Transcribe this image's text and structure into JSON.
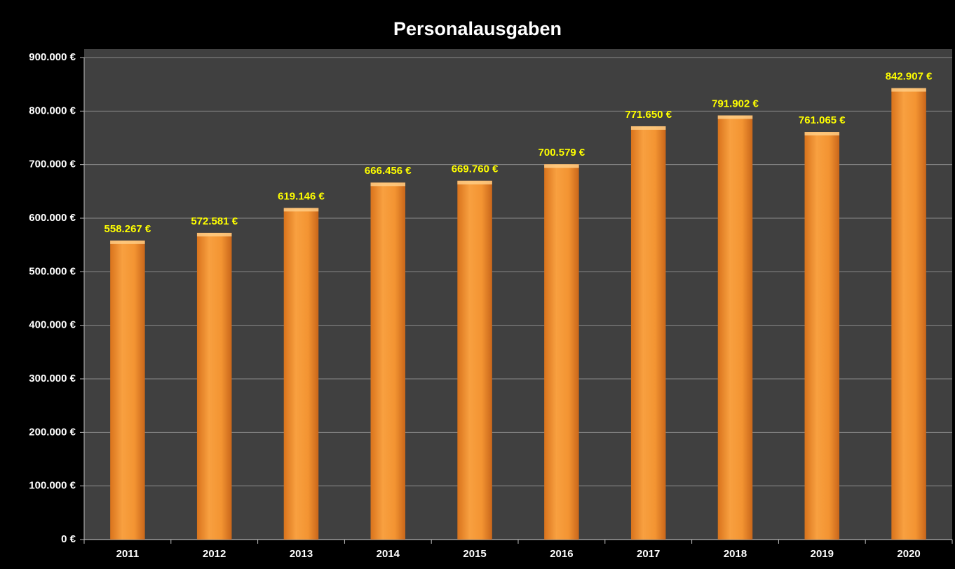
{
  "chart_data": {
    "type": "bar",
    "title": "Personalausgaben",
    "categories": [
      "2011",
      "2012",
      "2013",
      "2014",
      "2015",
      "2016",
      "2017",
      "2018",
      "2019",
      "2020"
    ],
    "values": [
      558267,
      572581,
      619146,
      666456,
      669760,
      700579,
      771650,
      791902,
      761065,
      842907
    ],
    "value_labels": [
      "558.267 €",
      "572.581 €",
      "619.146 €",
      "666.456 €",
      "669.760 €",
      "700.579 €",
      "771.650 €",
      "791.902 €",
      "761.065 €",
      "842.907 €"
    ],
    "color": "#f39432",
    "ylim": [
      0,
      900000
    ],
    "yticks": [
      {
        "value": 0,
        "label": "0 €"
      },
      {
        "value": 100000,
        "label": "100.000 €"
      },
      {
        "value": 200000,
        "label": "200.000 €"
      },
      {
        "value": 300000,
        "label": "300.000 €"
      },
      {
        "value": 400000,
        "label": "400.000 €"
      },
      {
        "value": 500000,
        "label": "500.000 €"
      },
      {
        "value": 600000,
        "label": "600.000 €"
      },
      {
        "value": 700000,
        "label": "700.000 €"
      },
      {
        "value": 800000,
        "label": "800.000 €"
      },
      {
        "value": 900000,
        "label": "900.000 €"
      }
    ],
    "grid": true
  }
}
